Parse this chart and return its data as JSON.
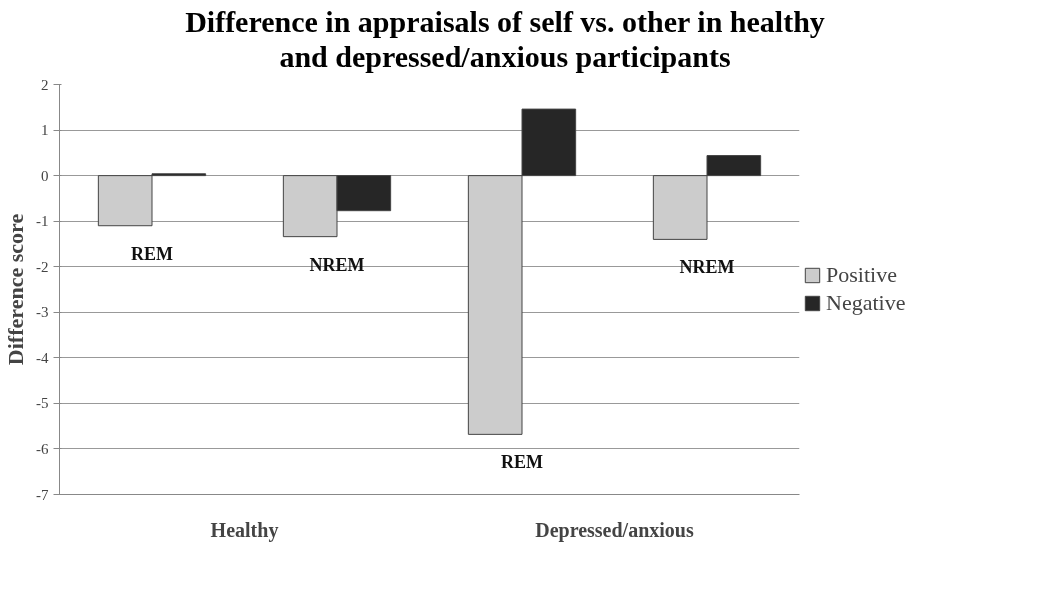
{
  "chart_data": {
    "type": "bar",
    "title": "Difference in appraisals of self vs. other in healthy\nand depressed/anxious participants",
    "ylabel": "Difference score",
    "categories": [
      "REM",
      "NREM",
      "REM",
      "NREM"
    ],
    "series": [
      {
        "name": "Positive",
        "color": "#cccccc",
        "values": [
          -1.1,
          -1.34,
          -5.68,
          -1.4
        ]
      },
      {
        "name": "Negative",
        "color": "#262626",
        "values": [
          0.04,
          -0.77,
          1.46,
          0.44
        ]
      }
    ],
    "annotations": [
      "Healthy",
      "Depressed/anxious"
    ],
    "ylim": [
      -7,
      2
    ],
    "yticks": [
      -7,
      -6,
      -5,
      -4,
      -3,
      -2,
      -1,
      0,
      1,
      2
    ],
    "grid": "y",
    "legend": "right"
  }
}
